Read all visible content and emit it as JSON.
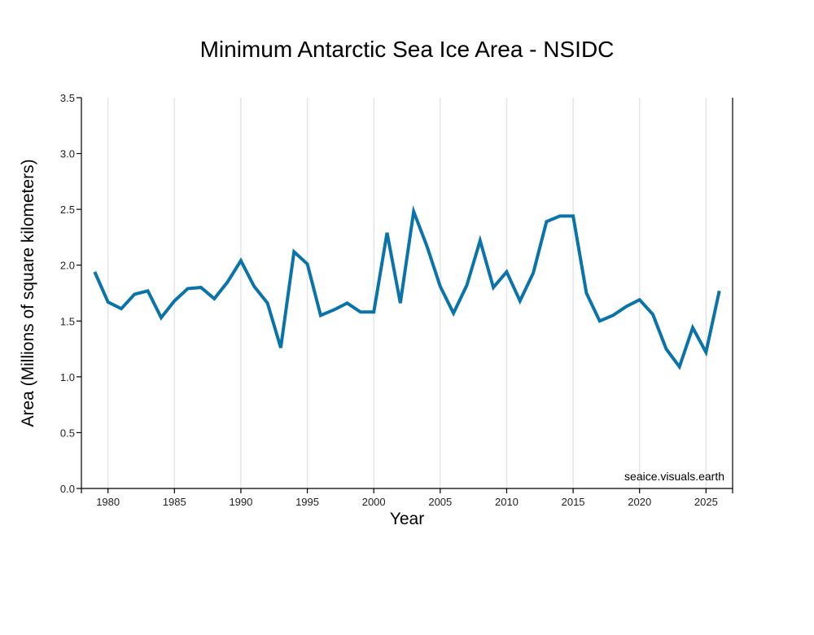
{
  "chart_data": {
    "type": "line",
    "title": "Minimum Antarctic Sea Ice Area - NSIDC",
    "xlabel": "Year",
    "ylabel": "Area (Millions of square kilometers)",
    "watermark": "seaice.visuals.earth",
    "xlim": [
      1978,
      2027
    ],
    "ylim": [
      0,
      3.5
    ],
    "x_ticks": [
      1980,
      1985,
      1990,
      1995,
      2000,
      2005,
      2010,
      2015,
      2020,
      2025
    ],
    "x_tick_labels": [
      "1980",
      "1985",
      "1990",
      "1995",
      "2000",
      "2005",
      "2010",
      "2015",
      "2020",
      "2025"
    ],
    "y_ticks": [
      0,
      0.5,
      1,
      1.5,
      2,
      2.5,
      3,
      3.5
    ],
    "y_tick_labels": [
      "0.0",
      "0.5",
      "1.0",
      "1.5",
      "2.0",
      "2.5",
      "3.0",
      "3.5"
    ],
    "grid": "vertical",
    "line_color": "#0a74aa",
    "series": [
      {
        "name": "Minimum Antarctic Sea Ice Area",
        "x": [
          1979,
          1980,
          1981,
          1982,
          1983,
          1984,
          1985,
          1986,
          1987,
          1988,
          1989,
          1990,
          1991,
          1992,
          1993,
          1994,
          1995,
          1996,
          1997,
          1998,
          1999,
          2000,
          2001,
          2002,
          2003,
          2004,
          2005,
          2006,
          2007,
          2008,
          2009,
          2010,
          2011,
          2012,
          2013,
          2014,
          2015,
          2016,
          2017,
          2018,
          2019,
          2020,
          2021,
          2022,
          2023,
          2024,
          2025,
          2026
        ],
        "values": [
          1.94,
          1.67,
          1.61,
          1.74,
          1.77,
          1.53,
          1.68,
          1.79,
          1.8,
          1.7,
          1.85,
          2.04,
          1.81,
          1.66,
          1.26,
          2.12,
          2.01,
          1.55,
          1.6,
          1.66,
          1.58,
          1.58,
          2.29,
          1.66,
          2.48,
          2.17,
          1.81,
          1.57,
          1.82,
          2.22,
          1.8,
          1.94,
          1.68,
          1.93,
          2.39,
          2.44,
          2.44,
          1.75,
          1.5,
          1.55,
          1.63,
          1.69,
          1.56,
          1.25,
          1.09,
          1.44,
          1.22,
          1.77
        ]
      }
    ]
  }
}
